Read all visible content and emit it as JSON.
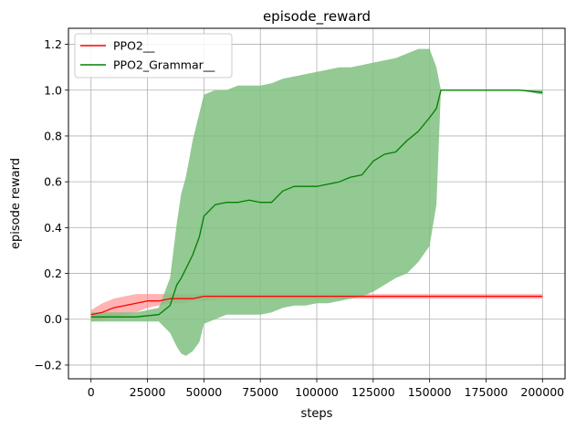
{
  "chart_data": {
    "type": "line",
    "title": "episode_reward",
    "xlabel": "steps",
    "ylabel": "episode reward",
    "xlim": [
      -10000,
      210000
    ],
    "ylim": [
      -0.26,
      1.27
    ],
    "xticks": [
      0,
      25000,
      50000,
      75000,
      100000,
      125000,
      150000,
      175000,
      200000
    ],
    "xtick_labels": [
      "0",
      "25000",
      "50000",
      "75000",
      "100000",
      "125000",
      "150000",
      "175000",
      "200000"
    ],
    "yticks": [
      -0.2,
      0.0,
      0.2,
      0.4,
      0.6,
      0.8,
      1.0,
      1.2
    ],
    "ytick_labels": [
      "−0.2",
      "0.0",
      "0.2",
      "0.4",
      "0.6",
      "0.8",
      "1.0",
      "1.2"
    ],
    "grid": true,
    "legend_position": "top-left",
    "series": [
      {
        "name": "PPO2__",
        "color": "#ff0000",
        "band_color": "#ff8080",
        "x": [
          0,
          5000,
          10000,
          15000,
          20000,
          25000,
          30000,
          35000,
          40000,
          45000,
          50000,
          60000,
          70000,
          80000,
          90000,
          100000,
          110000,
          120000,
          130000,
          140000,
          150000,
          160000,
          170000,
          180000,
          190000,
          200000
        ],
        "y": [
          0.02,
          0.03,
          0.05,
          0.06,
          0.07,
          0.08,
          0.08,
          0.09,
          0.09,
          0.09,
          0.1,
          0.1,
          0.1,
          0.1,
          0.1,
          0.1,
          0.1,
          0.1,
          0.1,
          0.1,
          0.1,
          0.1,
          0.1,
          0.1,
          0.1,
          0.1
        ],
        "y_low": [
          -0.01,
          0.0,
          0.01,
          0.02,
          0.03,
          0.05,
          0.06,
          0.07,
          0.07,
          0.08,
          0.08,
          0.09,
          0.09,
          0.09,
          0.09,
          0.09,
          0.09,
          0.09,
          0.09,
          0.09,
          0.09,
          0.09,
          0.09,
          0.09,
          0.09,
          0.09
        ],
        "y_high": [
          0.04,
          0.07,
          0.09,
          0.1,
          0.11,
          0.11,
          0.11,
          0.11,
          0.11,
          0.11,
          0.11,
          0.11,
          0.11,
          0.11,
          0.11,
          0.11,
          0.11,
          0.11,
          0.11,
          0.11,
          0.11,
          0.11,
          0.11,
          0.11,
          0.11,
          0.11
        ]
      },
      {
        "name": "PPO2_Grammar__",
        "color": "#008000",
        "band_color": "#80c080",
        "x": [
          0,
          10000,
          20000,
          30000,
          35000,
          38000,
          40000,
          42000,
          45000,
          48000,
          50000,
          55000,
          60000,
          65000,
          70000,
          75000,
          80000,
          85000,
          90000,
          95000,
          100000,
          105000,
          110000,
          115000,
          120000,
          125000,
          130000,
          135000,
          140000,
          145000,
          150000,
          153000,
          155000,
          160000,
          170000,
          180000,
          190000,
          200000
        ],
        "y": [
          0.01,
          0.01,
          0.01,
          0.02,
          0.06,
          0.15,
          0.18,
          0.22,
          0.28,
          0.36,
          0.45,
          0.5,
          0.51,
          0.51,
          0.52,
          0.51,
          0.51,
          0.56,
          0.58,
          0.58,
          0.58,
          0.59,
          0.6,
          0.62,
          0.63,
          0.69,
          0.72,
          0.73,
          0.78,
          0.82,
          0.88,
          0.92,
          1.0,
          1.0,
          1.0,
          1.0,
          1.0,
          0.99
        ],
        "y_low": [
          -0.01,
          -0.01,
          -0.01,
          -0.01,
          -0.06,
          -0.12,
          -0.15,
          -0.16,
          -0.14,
          -0.1,
          -0.02,
          0.0,
          0.02,
          0.02,
          0.02,
          0.02,
          0.03,
          0.05,
          0.06,
          0.06,
          0.07,
          0.07,
          0.08,
          0.09,
          0.1,
          0.12,
          0.15,
          0.18,
          0.2,
          0.25,
          0.32,
          0.5,
          1.0,
          1.0,
          1.0,
          1.0,
          1.0,
          0.98
        ],
        "y_high": [
          0.03,
          0.03,
          0.03,
          0.05,
          0.18,
          0.42,
          0.55,
          0.62,
          0.78,
          0.9,
          0.98,
          1.0,
          1.0,
          1.02,
          1.02,
          1.02,
          1.03,
          1.05,
          1.06,
          1.07,
          1.08,
          1.09,
          1.1,
          1.1,
          1.11,
          1.12,
          1.13,
          1.14,
          1.16,
          1.18,
          1.18,
          1.1,
          1.0,
          1.0,
          1.0,
          1.0,
          1.0,
          1.0
        ]
      }
    ]
  }
}
